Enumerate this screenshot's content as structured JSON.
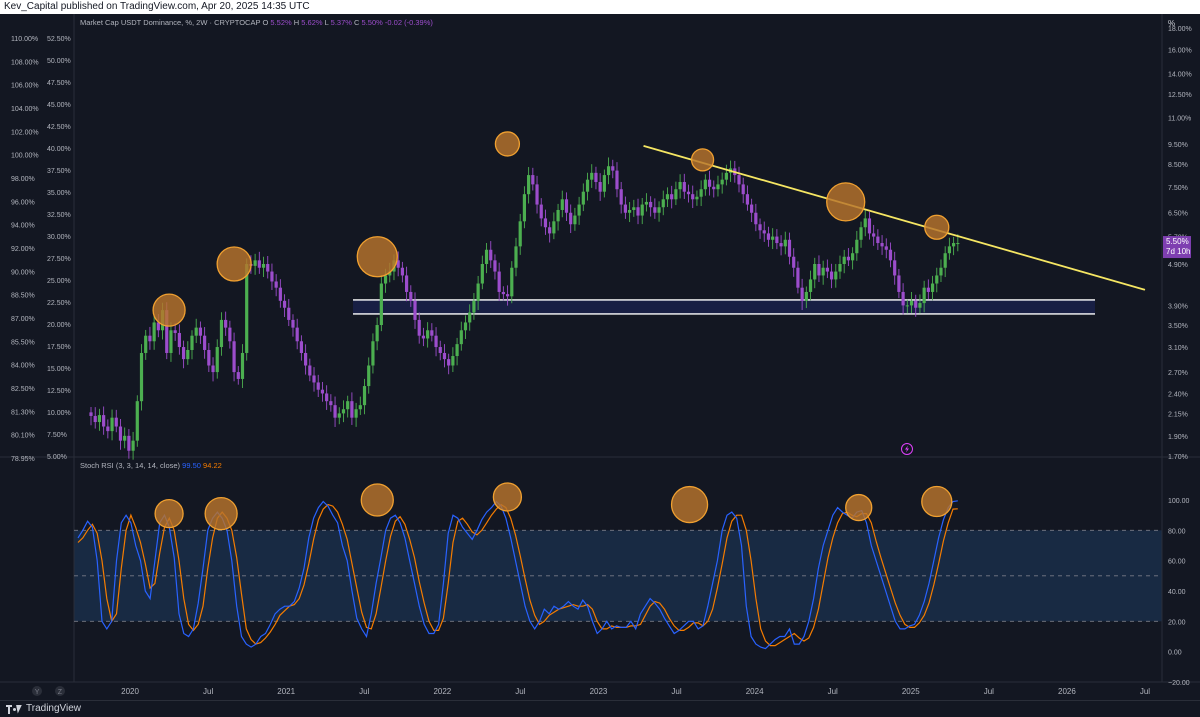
{
  "header": {
    "text": "Kev_Capital published on TradingView.com, Apr 20, 2025 14:35 UTC"
  },
  "footer": {
    "brand": "TradingView"
  },
  "colors": {
    "background": "#131722",
    "up": "#4caf50",
    "down": "#9c4dcc",
    "trendline": "#f5e663",
    "circle_fill": "#b8742c",
    "circle_stroke": "#f0a030",
    "k_line": "#2962ff",
    "d_line": "#f57c00",
    "support": "#ffffff"
  },
  "icons": [
    "lightning-icon",
    "tradingview-logo-icon"
  ],
  "chart_data": [
    {
      "type": "candlestick",
      "title": "Market Cap USDT Dominance, %",
      "interval": "2W",
      "source": "CRYPTOCAP",
      "ohlc_readout": {
        "o_label": "O",
        "o": "5.52%",
        "h_label": "H",
        "h": "5.62%",
        "l_label": "L",
        "l": "5.37%",
        "c_label": "C",
        "c": "5.50%",
        "change": "-0.02 (-0.39%)"
      },
      "price_badge": "5.50%",
      "countdown_badge": "7d 10h",
      "y_right_label": "%",
      "y_right_ticks": [
        "18.00%",
        "16.00%",
        "14.00%",
        "12.50%",
        "11.00%",
        "9.50%",
        "8.50%",
        "7.50%",
        "6.50%",
        "5.70%",
        "4.90%",
        "3.90%",
        "3.50%",
        "3.10%",
        "2.70%",
        "2.40%",
        "2.15%",
        "1.90%",
        "1.70%"
      ],
      "y_left_outer_ticks": [
        "110.00%",
        "108.00%",
        "106.00%",
        "104.00%",
        "102.00%",
        "100.00%",
        "98.00%",
        "96.00%",
        "94.00%",
        "92.00%",
        "90.00%",
        "88.50%",
        "87.00%",
        "85.50%",
        "84.00%",
        "82.50%",
        "81.30%",
        "80.10%",
        "78.95%"
      ],
      "y_left_inner_ticks": [
        "52.50%",
        "50.00%",
        "47.50%",
        "45.00%",
        "42.50%",
        "40.00%",
        "37.50%",
        "35.00%",
        "32.50%",
        "30.00%",
        "27.50%",
        "25.00%",
        "22.50%",
        "20.00%",
        "17.50%",
        "15.00%",
        "12.50%",
        "10.00%",
        "7.50%",
        "5.00%"
      ],
      "x_ticks": [
        "2020",
        "Jul",
        "2021",
        "Jul",
        "2022",
        "Jul",
        "2023",
        "Jul",
        "2024",
        "Jul",
        "2025",
        "Jul",
        "2026",
        "Jul"
      ],
      "x_range": [
        "2019-09",
        "2026-08"
      ],
      "y_range_percent": [
        1.7,
        18.0
      ],
      "y_scale": "log",
      "support_zone_percent": [
        3.72,
        4.02
      ],
      "trendline_percent": [
        [
          "2023-04",
          9.4
        ],
        [
          "2026-07",
          4.25
        ]
      ],
      "candles_biweekly_close_percent": [
        2.12,
        2.05,
        2.13,
        2.0,
        1.95,
        2.1,
        2.0,
        1.85,
        1.9,
        1.75,
        1.85,
        2.3,
        3.0,
        3.3,
        3.2,
        3.55,
        3.4,
        3.8,
        3.0,
        3.4,
        3.35,
        3.1,
        2.9,
        3.05,
        3.3,
        3.45,
        3.3,
        3.05,
        2.8,
        2.7,
        3.1,
        3.6,
        3.45,
        3.2,
        2.7,
        2.6,
        3.0,
        4.9,
        4.85,
        5.0,
        4.8,
        4.9,
        4.7,
        4.45,
        4.3,
        4.0,
        3.85,
        3.6,
        3.45,
        3.2,
        3.0,
        2.8,
        2.65,
        2.55,
        2.45,
        2.4,
        2.3,
        2.25,
        2.1,
        2.15,
        2.2,
        2.3,
        2.1,
        2.2,
        2.25,
        2.5,
        2.8,
        3.2,
        3.5,
        4.4,
        4.6,
        4.7,
        5.0,
        4.8,
        4.6,
        4.2,
        4.0,
        3.6,
        3.3,
        3.25,
        3.4,
        3.3,
        3.1,
        3.0,
        2.9,
        2.8,
        2.95,
        3.15,
        3.4,
        3.55,
        3.75,
        4.0,
        4.4,
        4.9,
        5.3,
        5.0,
        4.7,
        4.2,
        4.15,
        4.1,
        4.8,
        5.4,
        6.2,
        7.2,
        8.0,
        7.6,
        6.8,
        6.3,
        6.0,
        5.8,
        6.2,
        6.6,
        7.0,
        6.5,
        6.1,
        6.4,
        6.8,
        7.3,
        7.8,
        8.1,
        7.7,
        7.3,
        8.0,
        8.4,
        8.2,
        7.4,
        6.8,
        6.5,
        6.6,
        6.7,
        6.4,
        6.8,
        6.9,
        6.7,
        6.5,
        6.7,
        7.0,
        7.2,
        7.0,
        7.4,
        7.7,
        7.3,
        7.2,
        7.0,
        7.1,
        7.4,
        7.8,
        7.5,
        7.4,
        7.6,
        7.8,
        8.1,
        8.3,
        8.0,
        7.6,
        7.2,
        6.8,
        6.5,
        6.1,
        5.9,
        5.8,
        5.6,
        5.7,
        5.5,
        5.4,
        5.6,
        5.1,
        4.8,
        4.3,
        4.0,
        4.2,
        4.5,
        4.9,
        4.6,
        4.8,
        4.7,
        4.5,
        4.7,
        4.9,
        5.1,
        5.0,
        5.2,
        5.6,
        6.0,
        6.3,
        5.8,
        5.7,
        5.5,
        5.4,
        5.3,
        5.0,
        4.6,
        4.2,
        3.9,
        3.9,
        4.0,
        3.85,
        3.95,
        4.3,
        4.2,
        4.4,
        4.6,
        4.8,
        5.2,
        5.4,
        5.5,
        5.5
      ]
    },
    {
      "type": "line",
      "title": "Stoch RSI (3, 3, 14, 14, close)",
      "k_value": "99.50",
      "d_value": "94.22",
      "y_ticks": [
        "100.00",
        "80.00",
        "60.00",
        "40.00",
        "20.00",
        "0.00",
        "−20.00"
      ],
      "y_range": [
        -20,
        100
      ],
      "band": [
        20,
        80
      ],
      "series": [
        {
          "key": "k",
          "color": "#2962ff",
          "values": [
            75,
            80,
            86,
            82,
            60,
            20,
            15,
            20,
            60,
            85,
            90,
            85,
            70,
            60,
            40,
            35,
            60,
            85,
            90,
            82,
            62,
            25,
            12,
            10,
            15,
            32,
            55,
            80,
            88,
            92,
            88,
            80,
            60,
            30,
            10,
            5,
            3,
            5,
            10,
            12,
            18,
            25,
            28,
            30,
            30,
            33,
            42,
            55,
            75,
            88,
            95,
            99,
            96,
            90,
            85,
            70,
            60,
            40,
            22,
            15,
            10,
            25,
            45,
            62,
            80,
            88,
            90,
            85,
            75,
            60,
            45,
            30,
            18,
            12,
            12,
            18,
            45,
            78,
            90,
            88,
            82,
            78,
            74,
            80,
            87,
            92,
            95,
            99,
            96,
            88,
            75,
            60,
            45,
            30,
            20,
            15,
            20,
            28,
            25,
            30,
            28,
            30,
            33,
            30,
            28,
            34,
            30,
            20,
            12,
            15,
            20,
            15,
            17,
            16,
            16,
            20,
            15,
            25,
            30,
            35,
            32,
            28,
            22,
            17,
            12,
            14,
            17,
            20,
            20,
            15,
            17,
            30,
            45,
            60,
            80,
            90,
            92,
            88,
            70,
            30,
            10,
            5,
            3,
            2,
            5,
            8,
            10,
            10,
            15,
            5,
            5,
            10,
            20,
            35,
            55,
            70,
            80,
            90,
            95,
            92,
            90,
            88,
            92,
            93,
            85,
            70,
            60,
            50,
            40,
            30,
            20,
            15,
            15,
            17,
            18,
            24,
            33,
            45,
            60,
            75,
            87,
            95,
            99,
            99.5
          ]
        },
        {
          "key": "d",
          "color": "#f57c00",
          "values": [
            72,
            75,
            80,
            84,
            78,
            60,
            35,
            20,
            25,
            55,
            80,
            90,
            82,
            72,
            58,
            42,
            45,
            65,
            82,
            88,
            80,
            60,
            35,
            18,
            14,
            18,
            30,
            55,
            75,
            88,
            92,
            88,
            80,
            62,
            38,
            15,
            8,
            5,
            6,
            9,
            13,
            18,
            24,
            27,
            30,
            31,
            35,
            44,
            58,
            74,
            87,
            94,
            97,
            96,
            92,
            84,
            74,
            58,
            42,
            26,
            16,
            15,
            25,
            42,
            60,
            76,
            86,
            89,
            84,
            74,
            62,
            46,
            32,
            20,
            14,
            14,
            22,
            45,
            72,
            86,
            88,
            84,
            79,
            77,
            80,
            85,
            90,
            94,
            97,
            95,
            88,
            77,
            63,
            48,
            34,
            24,
            18,
            20,
            24,
            26,
            28,
            29,
            30,
            31,
            30,
            30,
            31,
            28,
            20,
            15,
            15,
            17,
            16,
            16,
            16,
            17,
            17,
            18,
            24,
            30,
            33,
            32,
            28,
            22,
            17,
            14,
            14,
            16,
            19,
            19,
            17,
            20,
            28,
            42,
            58,
            75,
            86,
            90,
            90,
            80,
            60,
            35,
            15,
            7,
            4,
            4,
            6,
            8,
            10,
            12,
            9,
            7,
            9,
            16,
            28,
            45,
            62,
            75,
            85,
            91,
            92,
            90,
            89,
            91,
            91,
            85,
            73,
            62,
            52,
            42,
            32,
            24,
            18,
            16,
            16,
            19,
            24,
            32,
            44,
            58,
            73,
            85,
            94,
            94.22
          ]
        }
      ]
    }
  ]
}
